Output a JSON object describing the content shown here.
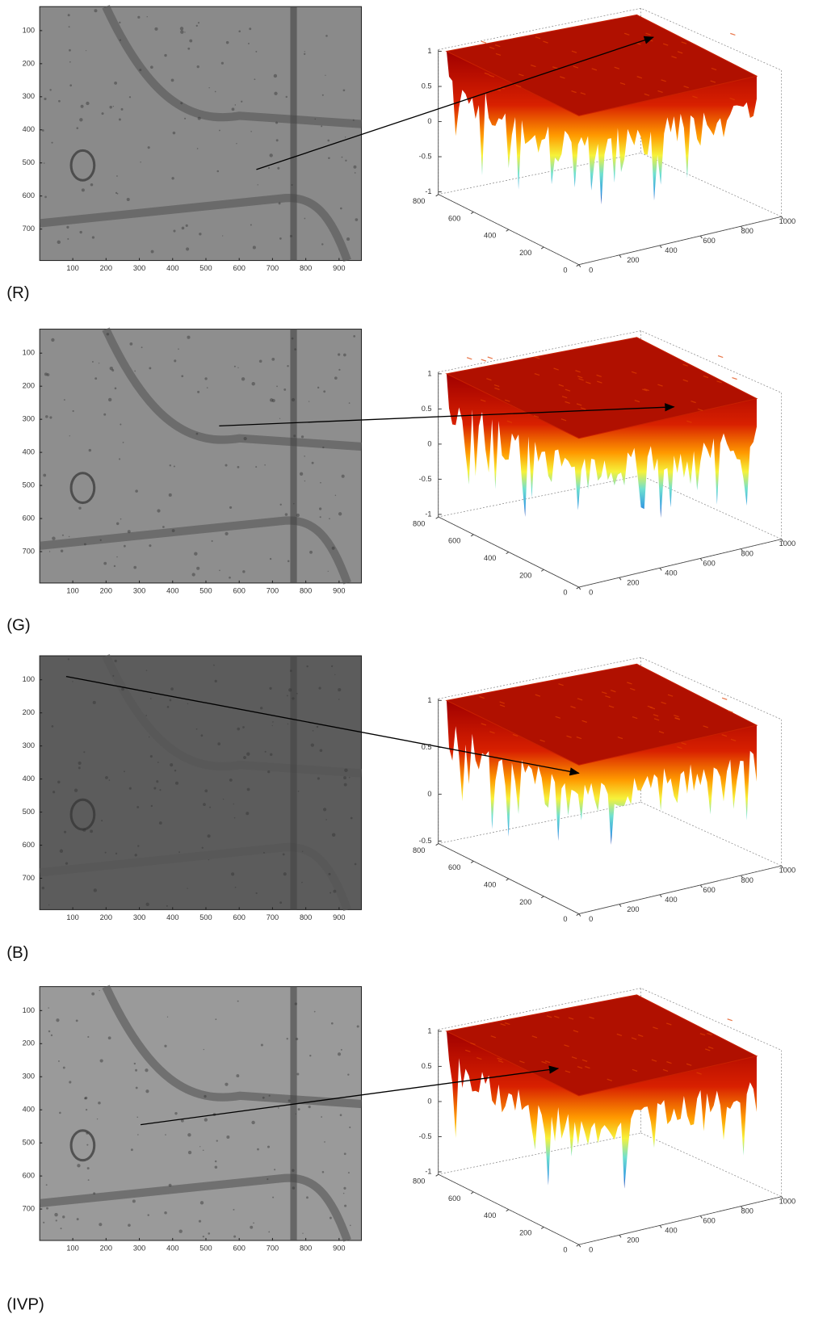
{
  "figure": {
    "panels": [
      {
        "label": "(R)",
        "image_xticks": [
          100,
          200,
          300,
          400,
          500,
          600,
          700,
          800,
          900
        ],
        "image_yticks": [
          100,
          200,
          300,
          400,
          500,
          600,
          700
        ],
        "surface_zticks": [
          1,
          0.5,
          0,
          -0.5,
          -1
        ],
        "surface_yticks": [
          800,
          600,
          400,
          200,
          0
        ],
        "surface_xticks": [
          0,
          200,
          400,
          600,
          800,
          1000
        ]
      },
      {
        "label": "(G)",
        "image_xticks": [
          100,
          200,
          300,
          400,
          500,
          600,
          700,
          800,
          900
        ],
        "image_yticks": [
          100,
          200,
          300,
          400,
          500,
          600,
          700
        ],
        "surface_zticks": [
          1,
          0.5,
          0,
          -0.5,
          -1
        ],
        "surface_yticks": [
          800,
          600,
          400,
          200,
          0
        ],
        "surface_xticks": [
          0,
          200,
          400,
          600,
          800,
          1000
        ]
      },
      {
        "label": "(B)",
        "image_xticks": [
          100,
          200,
          300,
          400,
          500,
          600,
          700,
          800,
          900
        ],
        "image_yticks": [
          100,
          200,
          300,
          400,
          500,
          600,
          700
        ],
        "surface_zticks": [
          1,
          0.5,
          0,
          -0.5
        ],
        "surface_yticks": [
          800,
          600,
          400,
          200,
          0
        ],
        "surface_xticks": [
          0,
          200,
          400,
          600,
          800,
          1000
        ]
      },
      {
        "label": "(IVP)",
        "image_xticks": [
          100,
          200,
          300,
          400,
          500,
          600,
          700,
          800,
          900
        ],
        "image_yticks": [
          100,
          200,
          300,
          400,
          500,
          600,
          700
        ],
        "surface_zticks": [
          1,
          0.5,
          0,
          -0.5,
          -1
        ],
        "surface_yticks": [
          800,
          600,
          400,
          200,
          0
        ],
        "surface_xticks": [
          0,
          200,
          400,
          600,
          800,
          1000
        ]
      }
    ]
  }
}
